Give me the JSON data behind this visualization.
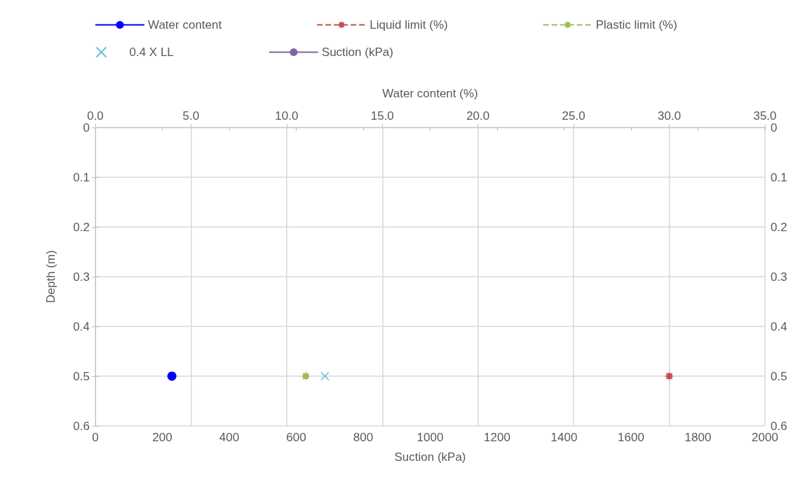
{
  "chart_data": {
    "type": "line",
    "xlabel": "Suction (kPa)",
    "x2label": "Water content (%)",
    "ylabel": "Depth (m)",
    "xlim": [
      0,
      2000
    ],
    "xticks": [
      0,
      200,
      400,
      600,
      800,
      1000,
      1200,
      1400,
      1600,
      1800,
      2000
    ],
    "x2lim": [
      0,
      35
    ],
    "x2ticks": [
      {
        "value": 0,
        "label": "0.0"
      },
      {
        "value": 5,
        "label": "5.0"
      },
      {
        "value": 10,
        "label": "10.0"
      },
      {
        "value": 15,
        "label": "15.0"
      },
      {
        "value": 20,
        "label": "20.0"
      },
      {
        "value": 25,
        "label": "25.0"
      },
      {
        "value": 30,
        "label": "30.0"
      },
      {
        "value": 35,
        "label": "35.0"
      }
    ],
    "ylim": [
      0.6,
      0
    ],
    "yticks": [
      0,
      0.1,
      0.2,
      0.3,
      0.4,
      0.5,
      0.6
    ],
    "y2lim": [
      0.6,
      0
    ],
    "y2ticks": [
      0,
      0.1,
      0.2,
      0.3,
      0.4,
      0.5,
      0.6
    ],
    "grid": true,
    "legend": "top",
    "series": [
      {
        "name": "Water content",
        "axis": "x2",
        "color": "#0000ff",
        "marker": "circle",
        "line_style": "solid",
        "x": [
          4.0
        ],
        "values": [
          0.5
        ]
      },
      {
        "name": "Liquid limit (%)",
        "axis": "x2",
        "color": "#c0504d",
        "marker": "star",
        "line_style": "dashed",
        "x": [
          30.0
        ],
        "values": [
          0.5
        ]
      },
      {
        "name": "Plastic limit (%)",
        "axis": "x2",
        "color": "#9bbb59",
        "marker": "star",
        "line_style": "dashed",
        "x": [
          11.0
        ],
        "values": [
          0.5
        ]
      },
      {
        "name": "0.4 X LL",
        "type": "scatter",
        "axis": "x2",
        "color": "#4bacc6",
        "marker": "cross",
        "x": [
          12.0
        ],
        "values": [
          0.5
        ]
      },
      {
        "name": "Suction (kPa)",
        "color": "#8064a2",
        "marker": "circle",
        "line_style": "solid",
        "x": [
          null
        ],
        "values": [
          null
        ]
      }
    ]
  }
}
